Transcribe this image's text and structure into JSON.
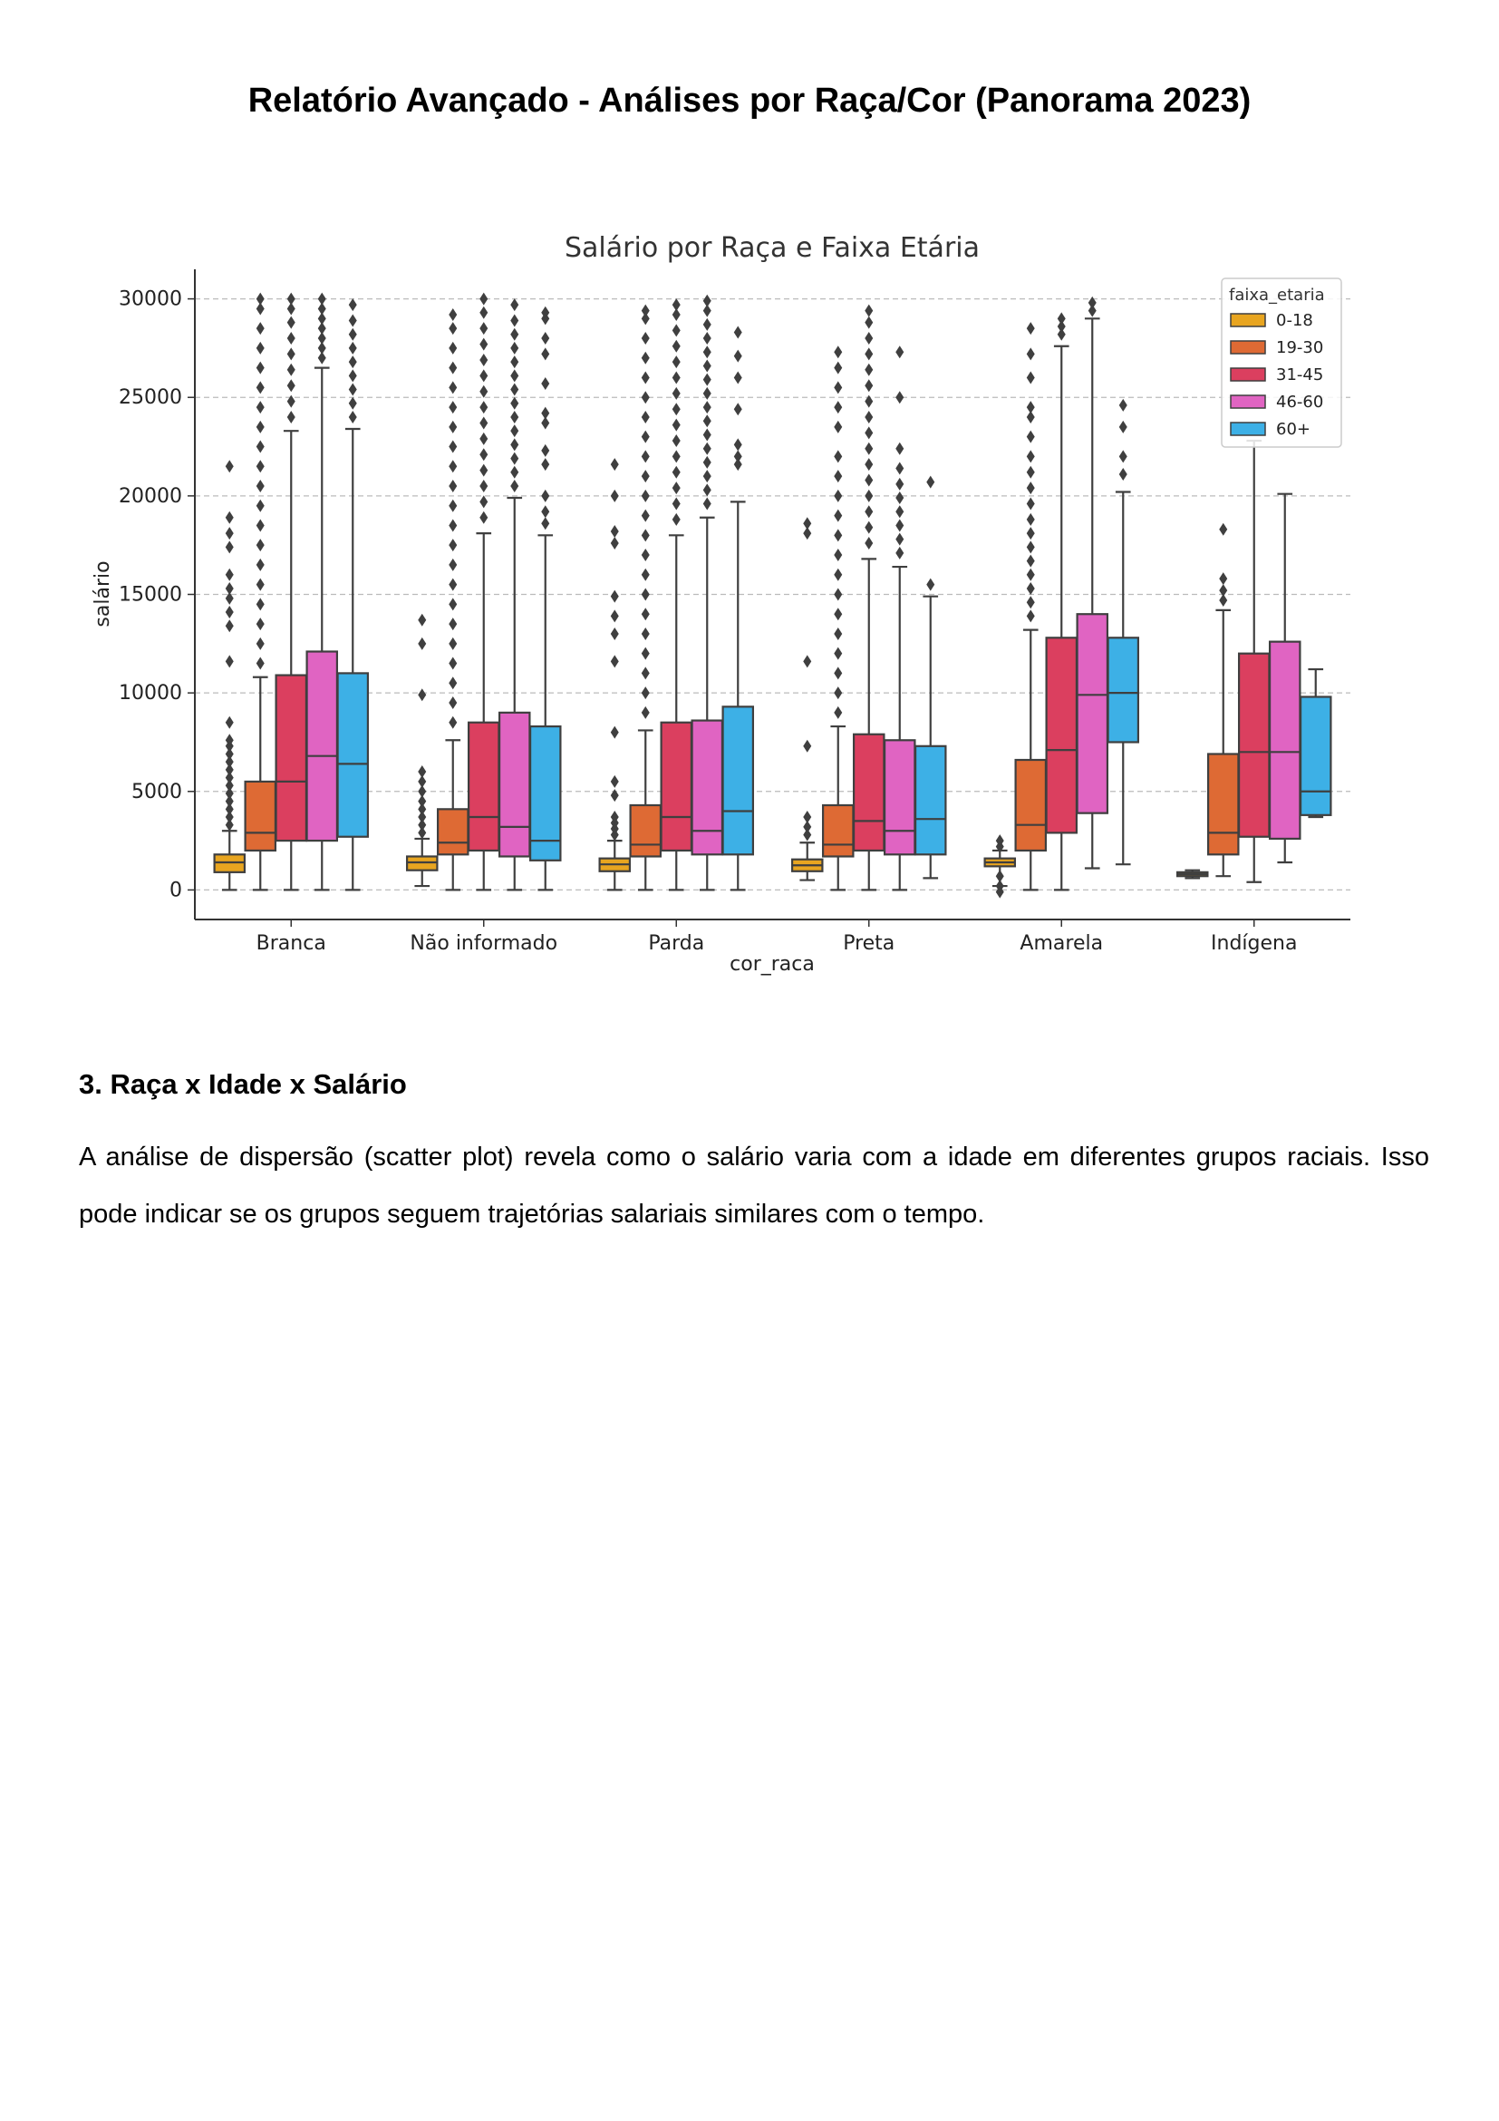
{
  "document": {
    "title": "Relatório Avançado - Análises por Raça/Cor (Panorama 2023)",
    "section_heading": "3. Raça x Idade x Salário",
    "paragraph": "A análise de dispersão (scatter plot) revela como o salário varia com a idade em diferentes grupos raciais. Isso pode indicar se os grupos seguem trajetórias salariais similares com o tempo."
  },
  "chart_data": {
    "type": "box",
    "title": "Salário por Raça e Faixa Etária",
    "xlabel": "cor_raca",
    "ylabel": "salário",
    "ylim": [
      -1500,
      31500
    ],
    "yticks": [
      0,
      5000,
      10000,
      15000,
      20000,
      25000,
      30000
    ],
    "grid": "horizontal dashed",
    "legend": {
      "title": "faixa_etaria",
      "placement": "top-right"
    },
    "categories": [
      "Branca",
      "Não informado",
      "Parda",
      "Preta",
      "Amarela",
      "Indígena"
    ],
    "series": [
      {
        "name": "0-18",
        "color": "#E8A520",
        "boxes": [
          {
            "low": 0,
            "q1": 900,
            "median": 1400,
            "q3": 1800,
            "high": 3000,
            "outliers": [
              3300,
              3700,
              4100,
              4500,
              4900,
              5300,
              5700,
              6100,
              6500,
              6900,
              7300,
              7600,
              8500,
              11600,
              13400,
              14100,
              14800,
              15300,
              16000,
              17400,
              18100,
              18900,
              21500
            ]
          },
          {
            "low": 200,
            "q1": 1000,
            "median": 1400,
            "q3": 1700,
            "high": 2600,
            "outliers": [
              2900,
              3300,
              3700,
              4100,
              4500,
              5000,
              5500,
              6000,
              9900,
              12500,
              13700
            ]
          },
          {
            "low": 0,
            "q1": 950,
            "median": 1300,
            "q3": 1600,
            "high": 2500,
            "outliers": [
              2800,
              3100,
              3400,
              3700,
              4800,
              5500,
              8000,
              11600,
              13000,
              13900,
              14900,
              17600,
              18200,
              20000,
              21600
            ]
          },
          {
            "low": 500,
            "q1": 950,
            "median": 1250,
            "q3": 1550,
            "high": 2400,
            "outliers": [
              2800,
              3200,
              3700,
              7300,
              11600,
              18100,
              18600
            ]
          },
          {
            "low": 200,
            "q1": 1200,
            "median": 1400,
            "q3": 1600,
            "high": 2000,
            "outliers": [
              2200,
              2500,
              700,
              200,
              -100
            ]
          },
          {
            "low": 600,
            "q1": 700,
            "median": 800,
            "q3": 900,
            "high": 1000,
            "outliers": []
          }
        ]
      },
      {
        "name": "19-30",
        "color": "#DE6A34",
        "boxes": [
          {
            "low": 0,
            "q1": 2000,
            "median": 2900,
            "q3": 5500,
            "high": 10800,
            "outliers": [
              11500,
              12500,
              13500,
              14500,
              15500,
              16500,
              17500,
              18500,
              19500,
              20500,
              21500,
              22500,
              23500,
              24500,
              25500,
              26500,
              27500,
              28500,
              29500,
              30000
            ]
          },
          {
            "low": 0,
            "q1": 1800,
            "median": 2400,
            "q3": 4100,
            "high": 7600,
            "outliers": [
              8500,
              9500,
              10500,
              11500,
              12500,
              13500,
              14500,
              15500,
              16500,
              17500,
              18500,
              19500,
              20500,
              21500,
              22500,
              23500,
              24500,
              25500,
              26500,
              27500,
              28500,
              29200
            ]
          },
          {
            "low": 0,
            "q1": 1700,
            "median": 2300,
            "q3": 4300,
            "high": 8100,
            "outliers": [
              9000,
              10000,
              11000,
              12000,
              13000,
              14000,
              15000,
              16000,
              17000,
              18000,
              19000,
              20000,
              21000,
              22000,
              23000,
              24000,
              25000,
              26000,
              27000,
              28000,
              29000,
              29400
            ]
          },
          {
            "low": 0,
            "q1": 1700,
            "median": 2300,
            "q3": 4300,
            "high": 8300,
            "outliers": [
              9000,
              10000,
              11000,
              12000,
              13000,
              14000,
              15000,
              16000,
              17000,
              18000,
              19000,
              20000,
              21000,
              22000,
              23500,
              24500,
              25500,
              26500,
              27300
            ]
          },
          {
            "low": 0,
            "q1": 2000,
            "median": 3300,
            "q3": 6600,
            "high": 13200,
            "outliers": [
              13900,
              14600,
              15300,
              16000,
              16700,
              17400,
              18100,
              18800,
              19600,
              20400,
              21200,
              22000,
              23000,
              24000,
              24500,
              26000,
              27200,
              28500
            ]
          },
          {
            "low": 700,
            "q1": 1800,
            "median": 2900,
            "q3": 6900,
            "high": 14200,
            "outliers": [
              14700,
              15200,
              15800,
              18300
            ]
          }
        ]
      },
      {
        "name": "31-45",
        "color": "#DB3F5F",
        "boxes": [
          {
            "low": 0,
            "q1": 2500,
            "median": 5500,
            "q3": 10900,
            "high": 23300,
            "outliers": [
              24000,
              24800,
              25600,
              26400,
              27200,
              28000,
              28800,
              29500,
              30000
            ]
          },
          {
            "low": 0,
            "q1": 2000,
            "median": 3700,
            "q3": 8500,
            "high": 18100,
            "outliers": [
              18900,
              19700,
              20500,
              21300,
              22100,
              22900,
              23700,
              24500,
              25300,
              26100,
              26900,
              27700,
              28500,
              29300,
              30000
            ]
          },
          {
            "low": 0,
            "q1": 2000,
            "median": 3700,
            "q3": 8500,
            "high": 18000,
            "outliers": [
              18800,
              19600,
              20400,
              21200,
              22000,
              22800,
              23600,
              24400,
              25200,
              26000,
              26800,
              27600,
              28400,
              29200,
              29700
            ]
          },
          {
            "low": 0,
            "q1": 2000,
            "median": 3500,
            "q3": 7900,
            "high": 16800,
            "outliers": [
              17600,
              18400,
              19200,
              20000,
              20800,
              21600,
              22400,
              23200,
              24000,
              24800,
              25600,
              26400,
              27200,
              28000,
              28800,
              29400
            ]
          },
          {
            "low": 0,
            "q1": 2900,
            "median": 7100,
            "q3": 12800,
            "high": 27600,
            "outliers": [
              28200,
              28600,
              29000
            ]
          },
          {
            "low": 400,
            "q1": 2700,
            "median": 7000,
            "q3": 12000,
            "high": 22800,
            "outliers": []
          }
        ]
      },
      {
        "name": "46-60",
        "color": "#E064C2",
        "boxes": [
          {
            "low": 0,
            "q1": 2500,
            "median": 6800,
            "q3": 12100,
            "high": 26500,
            "outliers": [
              27000,
              27500,
              28000,
              28500,
              29000,
              29500,
              30000
            ]
          },
          {
            "low": 0,
            "q1": 1700,
            "median": 3200,
            "q3": 9000,
            "high": 19900,
            "outliers": [
              20500,
              21200,
              21900,
              22600,
              23300,
              24000,
              24700,
              25400,
              26100,
              26800,
              27500,
              28200,
              28900,
              29700
            ]
          },
          {
            "low": 0,
            "q1": 1800,
            "median": 3000,
            "q3": 8600,
            "high": 18900,
            "outliers": [
              19600,
              20300,
              21000,
              21700,
              22400,
              23100,
              23800,
              24500,
              25200,
              25900,
              26600,
              27300,
              28000,
              28700,
              29400,
              29900
            ]
          },
          {
            "low": 0,
            "q1": 1800,
            "median": 3000,
            "q3": 7600,
            "high": 16400,
            "outliers": [
              17100,
              17800,
              18500,
              19200,
              19900,
              20600,
              21400,
              22400,
              25000,
              27300
            ]
          },
          {
            "low": 1100,
            "q1": 3900,
            "median": 9900,
            "q3": 14000,
            "high": 29000,
            "outliers": [
              29400,
              29800
            ]
          },
          {
            "low": 1400,
            "q1": 2600,
            "median": 7000,
            "q3": 12600,
            "high": 20100,
            "outliers": []
          }
        ]
      },
      {
        "name": "60+",
        "color": "#3DB0E6",
        "boxes": [
          {
            "low": 0,
            "q1": 2700,
            "median": 6400,
            "q3": 11000,
            "high": 23400,
            "outliers": [
              24000,
              24700,
              25400,
              26100,
              26800,
              27500,
              28200,
              28900,
              29700
            ]
          },
          {
            "low": 0,
            "q1": 1500,
            "median": 2500,
            "q3": 8300,
            "high": 18000,
            "outliers": [
              18600,
              19200,
              20000,
              21600,
              22300,
              23700,
              24200,
              25700,
              27200,
              28000,
              29000,
              29300
            ]
          },
          {
            "low": 0,
            "q1": 1800,
            "median": 4000,
            "q3": 9300,
            "high": 19700,
            "outliers": [
              21600,
              22000,
              22600,
              24400,
              26000,
              27100,
              28300
            ]
          },
          {
            "low": 600,
            "q1": 1800,
            "median": 3600,
            "q3": 7300,
            "high": 14900,
            "outliers": [
              15500,
              20700
            ]
          },
          {
            "low": 1300,
            "q1": 7500,
            "median": 10000,
            "q3": 12800,
            "high": 20200,
            "outliers": [
              21100,
              22000,
              23500,
              24600
            ]
          },
          {
            "low": 3700,
            "q1": 3800,
            "median": 5000,
            "q3": 9800,
            "high": 11200,
            "outliers": []
          }
        ]
      }
    ]
  }
}
